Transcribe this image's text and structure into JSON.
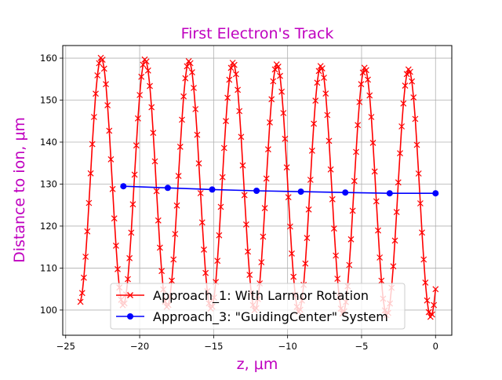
{
  "chart_data": {
    "type": "line",
    "title": "First Electron's Track",
    "xlabel": "z, μm",
    "ylabel": "Distance to ion, μm",
    "title_color": "#bf00bf",
    "label_color": "#bf00bf",
    "xlim": [
      -25.2,
      1.1
    ],
    "ylim": [
      94,
      163
    ],
    "xticks": [
      -25,
      -20,
      -15,
      -10,
      -5,
      0
    ],
    "yticks": [
      100,
      110,
      120,
      130,
      140,
      150,
      160
    ],
    "xtick_labels": [
      "−25",
      "−20",
      "−15",
      "−10",
      "−5",
      "0"
    ],
    "ytick_labels": [
      "100",
      "110",
      "120",
      "130",
      "140",
      "150",
      "160"
    ],
    "grid": true,
    "legend_position": "lower-center",
    "series": [
      {
        "name": "Approach_1: With Larmor Rotation",
        "color": "#ff0000",
        "marker": "x",
        "spiral": {
          "z_start": -24.0,
          "z_end": 0.0,
          "points": 210,
          "center_start": 130.9,
          "center_end": 127.7,
          "amplitude": 29.4,
          "period": 2.97,
          "first_peak_z": -22.6
        }
      },
      {
        "name": "Approach_3: \"GuidingCenter\" System",
        "color": "#0000ff",
        "marker": "o",
        "x": [
          -21.1,
          -18.1,
          -15.1,
          -12.1,
          -9.1,
          -6.1,
          -3.1,
          0.0
        ],
        "y": [
          129.5,
          129.1,
          128.7,
          128.4,
          128.2,
          128.0,
          127.8,
          127.8
        ]
      }
    ]
  }
}
